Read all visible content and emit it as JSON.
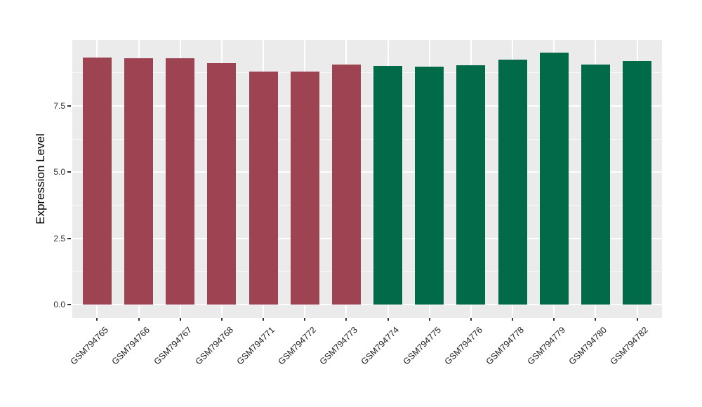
{
  "chart_data": {
    "type": "bar",
    "title": "",
    "xlabel": "",
    "ylabel": "Expression Level",
    "categories": [
      "GSM794765",
      "GSM794766",
      "GSM794767",
      "GSM794768",
      "GSM794771",
      "GSM794772",
      "GSM794773",
      "GSM794774",
      "GSM794775",
      "GSM794776",
      "GSM794778",
      "GSM794779",
      "GSM794780",
      "GSM794782"
    ],
    "values": [
      9.34,
      9.29,
      9.3,
      9.13,
      8.81,
      8.81,
      9.06,
      9.0,
      8.98,
      9.05,
      9.26,
      9.52,
      9.06,
      9.19
    ],
    "bar_colors": [
      "#9E4352",
      "#9E4352",
      "#9E4352",
      "#9E4352",
      "#9E4352",
      "#9E4352",
      "#9E4352",
      "#016B49",
      "#016B49",
      "#016B49",
      "#016B49",
      "#016B49",
      "#016B49",
      "#016B49"
    ],
    "palette": {
      "maroon_group": "#9E4352",
      "green_group": "#016B49"
    },
    "ytick_labels": [
      "0.0",
      "2.5",
      "5.0",
      "7.5"
    ],
    "yticks_major": [
      0,
      2.5,
      5.0,
      7.5
    ],
    "yticks_minor": [
      1.25,
      3.75,
      6.25,
      8.75
    ],
    "ylim": [
      -0.5,
      10.0
    ],
    "legend": "none",
    "grid": {
      "horizontal": "major+minor",
      "vertical": "major at category centers"
    },
    "panel_background": "#EBEBEB",
    "gridline_color": "#FFFFFF"
  }
}
